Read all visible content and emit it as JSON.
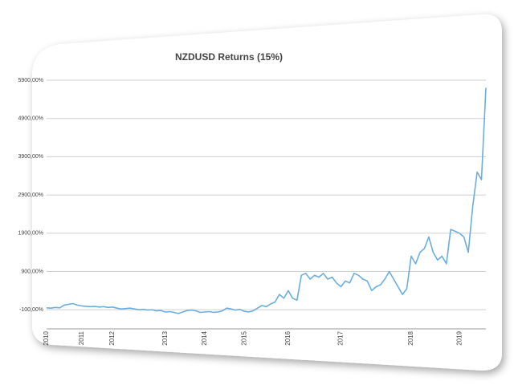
{
  "chart_data": {
    "type": "line",
    "title": "NZDUSD Returns (15%)",
    "categories": [
      "2010",
      null,
      null,
      null,
      null,
      null,
      null,
      null,
      "2011",
      null,
      null,
      null,
      null,
      null,
      null,
      "2012",
      null,
      null,
      null,
      null,
      null,
      null,
      null,
      null,
      null,
      null,
      null,
      "2013",
      null,
      null,
      null,
      null,
      null,
      null,
      null,
      null,
      "2014",
      null,
      null,
      null,
      null,
      null,
      null,
      null,
      null,
      "2015",
      null,
      null,
      null,
      null,
      null,
      null,
      null,
      null,
      null,
      "2016",
      null,
      null,
      null,
      null,
      null,
      null,
      null,
      null,
      null,
      null,
      null,
      "2017",
      null,
      null,
      null,
      null,
      null,
      null,
      null,
      null,
      null,
      null,
      null,
      null,
      null,
      null,
      null,
      "2018",
      null,
      null,
      null,
      null,
      null,
      null,
      null,
      null,
      null,
      null,
      "2019",
      null,
      null,
      null,
      null,
      null,
      null
    ],
    "values": [
      -50,
      -60,
      -40,
      -50,
      20,
      40,
      60,
      20,
      0,
      -10,
      -20,
      -10,
      -30,
      -20,
      -40,
      -30,
      -60,
      -80,
      -70,
      -60,
      -80,
      -100,
      -90,
      -110,
      -100,
      -130,
      -120,
      -160,
      -150,
      -170,
      -200,
      -160,
      -120,
      -110,
      -130,
      -170,
      -160,
      -150,
      -170,
      -160,
      -130,
      -60,
      -80,
      -110,
      -90,
      -140,
      -160,
      -130,
      -60,
      10,
      -20,
      50,
      100,
      300,
      200,
      400,
      200,
      150,
      800,
      850,
      700,
      800,
      750,
      850,
      700,
      750,
      600,
      500,
      650,
      600,
      850,
      800,
      700,
      650,
      400,
      500,
      550,
      700,
      900,
      700,
      500,
      300,
      450,
      1300,
      1100,
      1400,
      1500,
      1800,
      1400,
      1200,
      1300,
      1100,
      2000,
      1950,
      1900,
      1800,
      1400,
      2600,
      3500,
      3300,
      5700
    ],
    "color": "#6aaee0",
    "ylim": [
      -600,
      5900
    ],
    "yticks": [
      {
        "value": -100,
        "label": "-100,00%"
      },
      {
        "value": 900,
        "label": "900,00%"
      },
      {
        "value": 1900,
        "label": "1900,00%"
      },
      {
        "value": 2900,
        "label": "2900,00%"
      },
      {
        "value": 3900,
        "label": "3900,00%"
      },
      {
        "value": 4900,
        "label": "4900,00%"
      },
      {
        "value": 5900,
        "label": "5900,00%"
      }
    ],
    "grid": true
  }
}
